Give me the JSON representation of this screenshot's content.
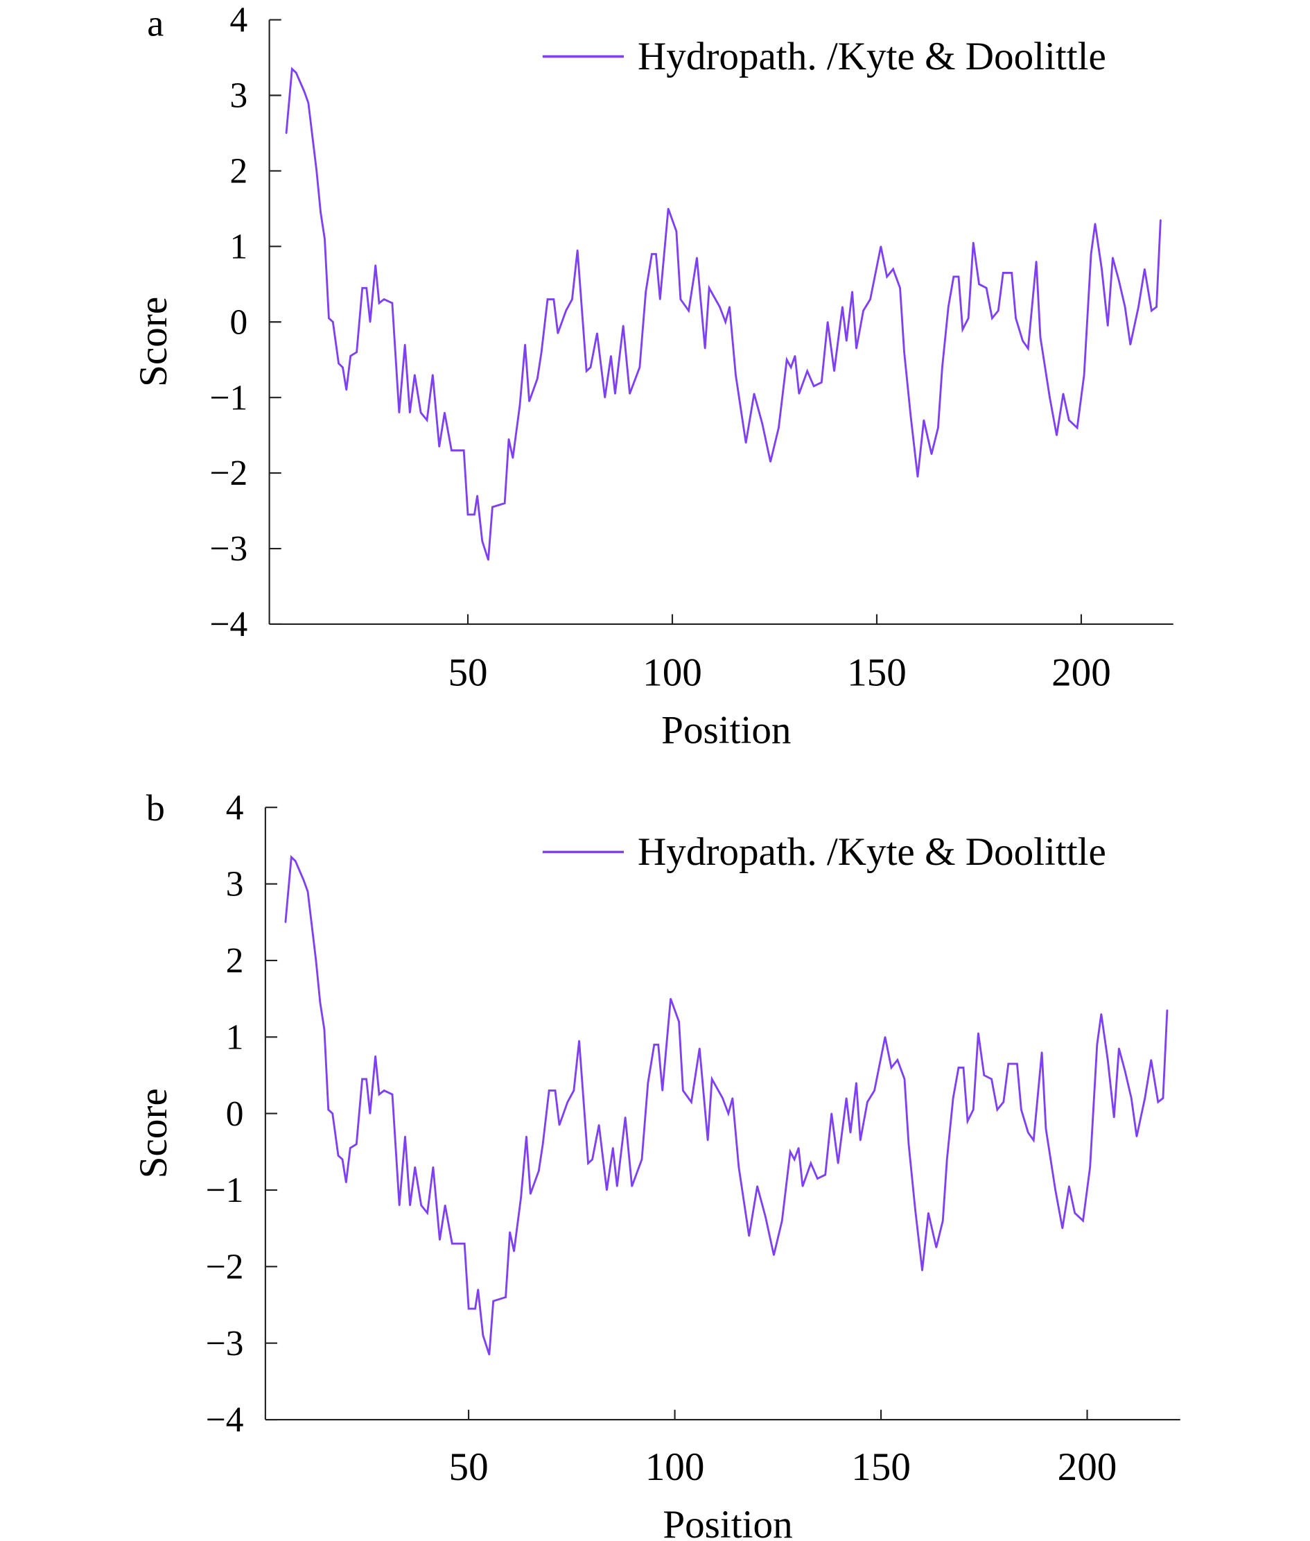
{
  "chart_data": [
    {
      "panel_label": "a",
      "type": "line",
      "title": "",
      "xlabel": "Position",
      "ylabel": "Score",
      "xlim": [
        1.5,
        222.5
      ],
      "ylim": [
        -4,
        4
      ],
      "xticks": [
        50,
        100,
        150,
        200
      ],
      "yticks": [
        -4,
        -3,
        -2,
        -1,
        0,
        1,
        2,
        3,
        4
      ],
      "ytick_labels": [
        "−4",
        "−3",
        "−2",
        "−1",
        "0",
        "1",
        "2",
        "3",
        "4"
      ],
      "grid": false,
      "legend": "top-right",
      "series": [
        {
          "name": "Hydropath. /Kyte & Doolittle",
          "color": "#7f3ff2"
        }
      ]
    },
    {
      "panel_label": "b",
      "type": "line",
      "title": "",
      "xlabel": "Position",
      "ylabel": "Score",
      "xlim": [
        0.7,
        222.8
      ],
      "ylim": [
        -4,
        4
      ],
      "xticks": [
        50,
        100,
        150,
        200
      ],
      "yticks": [
        -4,
        -3,
        -2,
        -1,
        0,
        1,
        2,
        3,
        4
      ],
      "ytick_labels": [
        "−4",
        "−3",
        "−2",
        "−1",
        "0",
        "1",
        "2",
        "3",
        "4"
      ],
      "grid": false,
      "legend": "top-right",
      "series": [
        {
          "name": "Hydropath. /Kyte & Doolittle",
          "color": "#7f3ff2"
        }
      ]
    }
  ],
  "series_points": {
    "x": [
      5.6,
      7,
      8,
      10,
      11,
      13,
      14,
      15,
      16,
      17,
      18.4,
      19.4,
      20.3,
      21.3,
      22.8,
      24.2,
      25.2,
      26.1,
      27.4,
      28.3,
      29.5,
      31.5,
      33.2,
      34.6,
      35.8,
      37,
      38.5,
      40,
      41.4,
      43,
      44.3,
      46,
      49,
      50,
      51.6,
      52.3,
      53.5,
      55,
      56,
      59,
      60,
      61,
      62.7,
      64,
      65,
      67,
      68,
      69.5,
      71,
      72,
      74,
      75.5,
      76.8,
      79,
      80,
      81.6,
      83.5,
      85,
      86,
      88,
      89.6,
      92,
      93.5,
      95,
      96,
      97,
      99,
      101,
      102,
      104,
      106,
      108,
      109,
      111.6,
      113,
      114,
      115.5,
      118,
      120,
      122,
      124,
      126,
      128,
      129,
      130,
      131,
      133,
      134.6,
      136.5,
      138,
      139.6,
      141.6,
      142.6,
      144,
      145,
      146.7,
      148.4,
      151,
      152.5,
      154,
      155.7,
      156.7,
      158.3,
      160,
      161.5,
      163.4,
      165,
      166,
      167.5,
      168.8,
      170,
      171,
      172.4,
      173.6,
      175,
      176.8,
      178.2,
      179.7,
      180.9,
      183,
      184,
      185.7,
      187,
      189,
      190,
      192.3,
      194,
      195.6,
      197,
      199,
      200.7,
      202.4,
      203.4,
      205,
      206.5,
      207.7,
      209.2,
      210.7,
      212,
      214,
      215.5,
      217.2,
      218.4,
      219.4
    ],
    "y": [
      2.5,
      3.35,
      3.3,
      3.05,
      2.9,
      2.0,
      1.45,
      1.1,
      0.05,
      0,
      -0.55,
      -0.6,
      -0.9,
      -0.45,
      -0.4,
      0.45,
      0.45,
      0,
      0.75,
      0.25,
      0.3,
      0.25,
      -1.2,
      -0.3,
      -1.2,
      -0.7,
      -1.2,
      -1.3,
      -0.7,
      -1.65,
      -1.2,
      -1.7,
      -1.7,
      -2.55,
      -2.55,
      -2.3,
      -2.9,
      -3.15,
      -2.45,
      -2.4,
      -1.55,
      -1.8,
      -1.1,
      -0.3,
      -1.05,
      -0.75,
      -0.4,
      0.3,
      0.3,
      -0.15,
      0.15,
      0.3,
      0.95,
      -0.65,
      -0.6,
      -0.15,
      -1.0,
      -0.45,
      -0.95,
      -0.05,
      -0.95,
      -0.6,
      0.4,
      0.9,
      0.9,
      0.3,
      1.5,
      1.2,
      0.3,
      0.15,
      0.85,
      -0.35,
      0.45,
      0.2,
      0,
      0.2,
      -0.7,
      -1.6,
      -0.95,
      -1.35,
      -1.85,
      -1.4,
      -0.5,
      -0.6,
      -0.45,
      -0.95,
      -0.65,
      -0.85,
      -0.8,
      0,
      -0.65,
      0.2,
      -0.25,
      0.4,
      -0.35,
      0.15,
      0.3,
      1.0,
      0.6,
      0.7,
      0.45,
      -0.4,
      -1.25,
      -2.05,
      -1.3,
      -1.75,
      -1.4,
      -0.6,
      0.2,
      0.6,
      0.6,
      -0.1,
      0.05,
      1.05,
      0.5,
      0.45,
      0.05,
      0.15,
      0.65,
      0.65,
      0.05,
      -0.25,
      -0.35,
      0.8,
      -0.2,
      -1.0,
      -1.5,
      -0.95,
      -1.3,
      -1.4,
      -0.7,
      0.9,
      1.3,
      0.7,
      -0.05,
      0.85,
      0.55,
      0.2,
      -0.3,
      0.2,
      0.7,
      0.15,
      0.2,
      1.35
    ]
  }
}
